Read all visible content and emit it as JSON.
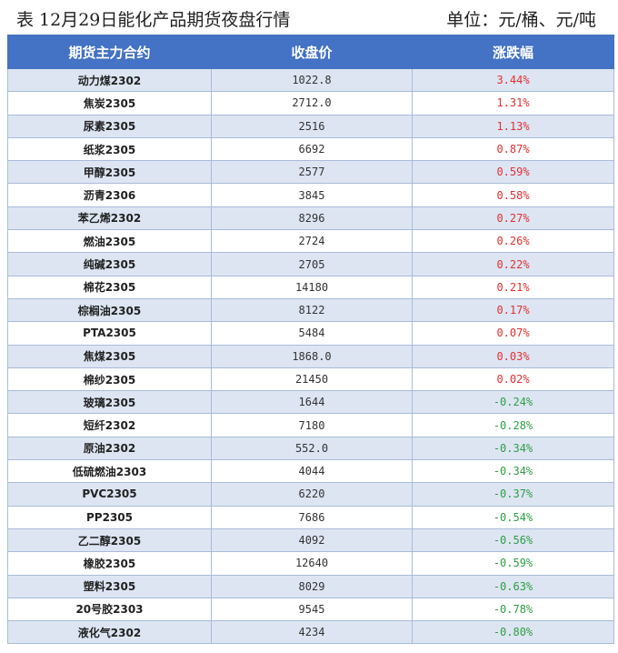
{
  "header": {
    "title": "表 12月29日能化产品期货夜盘行情",
    "unit": "单位：元/桶、元/吨"
  },
  "columns": {
    "contract": "期货主力合约",
    "close": "收盘价",
    "change": "涨跌幅"
  },
  "colors": {
    "header_bg": "#4472c4",
    "row_band": "#dde5f3",
    "up": "#e03131",
    "down": "#2f9e44"
  },
  "rows": [
    {
      "contract": "动力煤2302",
      "close": "1022.8",
      "change": "3.44%"
    },
    {
      "contract": "焦炭2305",
      "close": "2712.0",
      "change": "1.31%"
    },
    {
      "contract": "尿素2305",
      "close": "2516",
      "change": "1.13%"
    },
    {
      "contract": "纸浆2305",
      "close": "6692",
      "change": "0.87%"
    },
    {
      "contract": "甲醇2305",
      "close": "2577",
      "change": "0.59%"
    },
    {
      "contract": "沥青2306",
      "close": "3845",
      "change": "0.58%"
    },
    {
      "contract": "苯乙烯2302",
      "close": "8296",
      "change": "0.27%"
    },
    {
      "contract": "燃油2305",
      "close": "2724",
      "change": "0.26%"
    },
    {
      "contract": "纯碱2305",
      "close": "2705",
      "change": "0.22%"
    },
    {
      "contract": "棉花2305",
      "close": "14180",
      "change": "0.21%"
    },
    {
      "contract": "棕榈油2305",
      "close": "8122",
      "change": "0.17%"
    },
    {
      "contract": "PTA2305",
      "close": "5484",
      "change": "0.07%"
    },
    {
      "contract": "焦煤2305",
      "close": "1868.0",
      "change": "0.03%"
    },
    {
      "contract": "棉纱2305",
      "close": "21450",
      "change": "0.02%"
    },
    {
      "contract": "玻璃2305",
      "close": "1644",
      "change": "-0.24%"
    },
    {
      "contract": "短纤2302",
      "close": "7180",
      "change": "-0.28%"
    },
    {
      "contract": "原油2302",
      "close": "552.0",
      "change": "-0.34%"
    },
    {
      "contract": "低硫燃油2303",
      "close": "4044",
      "change": "-0.34%"
    },
    {
      "contract": "PVC2305",
      "close": "6220",
      "change": "-0.37%"
    },
    {
      "contract": "PP2305",
      "close": "7686",
      "change": "-0.54%"
    },
    {
      "contract": "乙二醇2305",
      "close": "4092",
      "change": "-0.56%"
    },
    {
      "contract": "橡胶2305",
      "close": "12640",
      "change": "-0.59%"
    },
    {
      "contract": "塑料2305",
      "close": "8029",
      "change": "-0.63%"
    },
    {
      "contract": "20号胶2303",
      "close": "9545",
      "change": "-0.78%"
    },
    {
      "contract": "液化气2302",
      "close": "4234",
      "change": "-0.80%"
    }
  ]
}
